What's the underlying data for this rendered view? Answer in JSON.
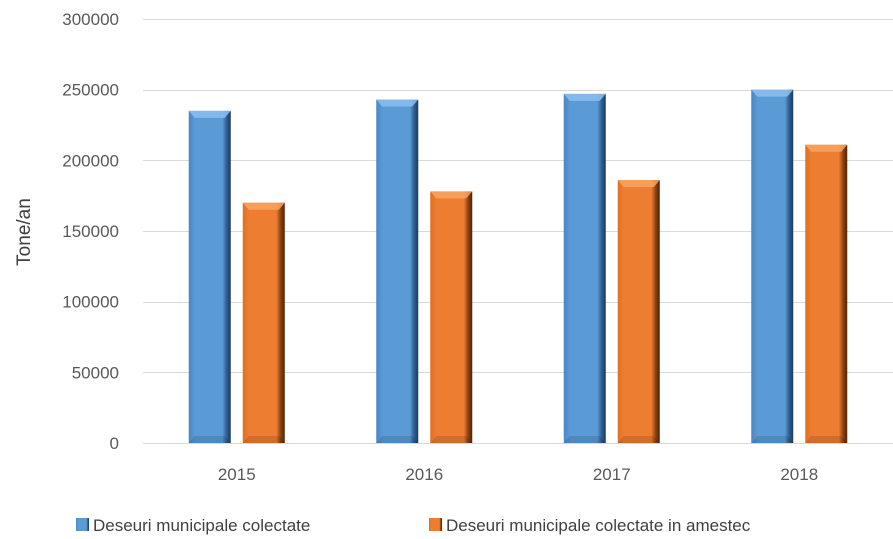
{
  "chart_data": {
    "type": "bar",
    "title": "",
    "xlabel": "",
    "ylabel": "Tone/an",
    "ylim": [
      0,
      300000
    ],
    "yticks": [
      "0",
      "50000",
      "100000",
      "150000",
      "200000",
      "250000",
      "300000"
    ],
    "categories": [
      "2015",
      "2016",
      "2017",
      "2018"
    ],
    "series": [
      {
        "name": "Deseuri municipale colectate",
        "values": [
          235000,
          243000,
          247000,
          250000
        ],
        "color": "#5B9BD5"
      },
      {
        "name": "Deseuri municipale colectate in amestec",
        "values": [
          170000,
          178000,
          186000,
          211000
        ],
        "color": "#ED7D31"
      }
    ],
    "grid": true,
    "legend_position": "bottom"
  }
}
